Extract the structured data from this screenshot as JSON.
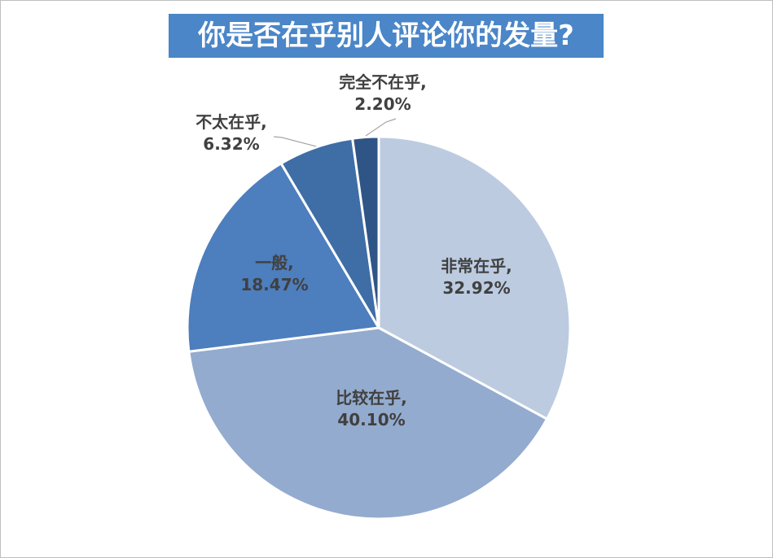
{
  "chart_data": {
    "type": "pie",
    "title": "你是否在乎别人评论你的发量?",
    "slices": [
      {
        "label": "非常在乎,",
        "value": 32.92,
        "value_text": "32.92%",
        "color": "#bccbe0"
      },
      {
        "label": "比较在乎,",
        "value": 40.1,
        "value_text": "40.10%",
        "color": "#93abce"
      },
      {
        "label": "一般,",
        "value": 18.47,
        "value_text": "18.47%",
        "color": "#4d7ebd"
      },
      {
        "label": "不太在乎,",
        "value": 6.32,
        "value_text": "6.32%",
        "color": "#3f6ea6"
      },
      {
        "label": "完全不在乎,",
        "value": 2.2,
        "value_text": "2.20%",
        "color": "#2f5586"
      }
    ],
    "legend": "none",
    "start_angle_deg": 0,
    "direction": "clockwise"
  }
}
